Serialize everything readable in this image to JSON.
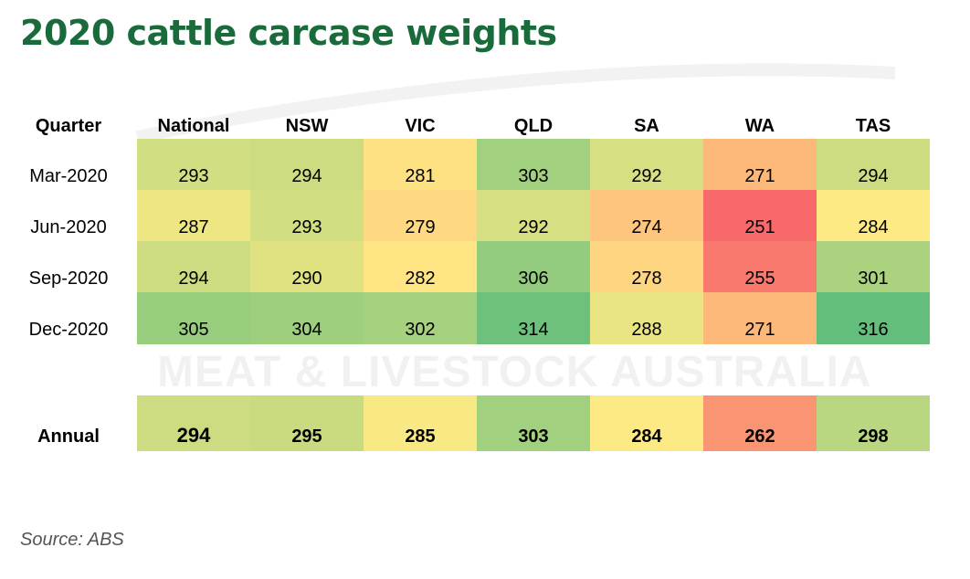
{
  "title": "2020 cattle carcase weights",
  "watermark": "MEAT & LIVESTOCK AUSTRALIA",
  "source": "Source: ABS",
  "chart_data": {
    "type": "heatmap",
    "title": "2020 cattle carcase weights",
    "row_header": "Quarter",
    "columns": [
      "National",
      "NSW",
      "VIC",
      "QLD",
      "SA",
      "WA",
      "TAS"
    ],
    "rows": [
      {
        "label": "Mar-2020",
        "values": [
          293,
          294,
          281,
          303,
          292,
          271,
          294
        ]
      },
      {
        "label": "Jun-2020",
        "values": [
          287,
          293,
          279,
          292,
          274,
          251,
          284
        ]
      },
      {
        "label": "Sep-2020",
        "values": [
          294,
          290,
          282,
          306,
          278,
          255,
          301
        ]
      },
      {
        "label": "Dec-2020",
        "values": [
          305,
          304,
          302,
          314,
          288,
          271,
          316
        ]
      }
    ],
    "annual": {
      "label": "Annual",
      "values": [
        294,
        295,
        285,
        303,
        284,
        262,
        298
      ]
    },
    "color_scale": {
      "low": "#f8696b",
      "mid": "#ffeb84",
      "high": "#63be7b"
    }
  }
}
